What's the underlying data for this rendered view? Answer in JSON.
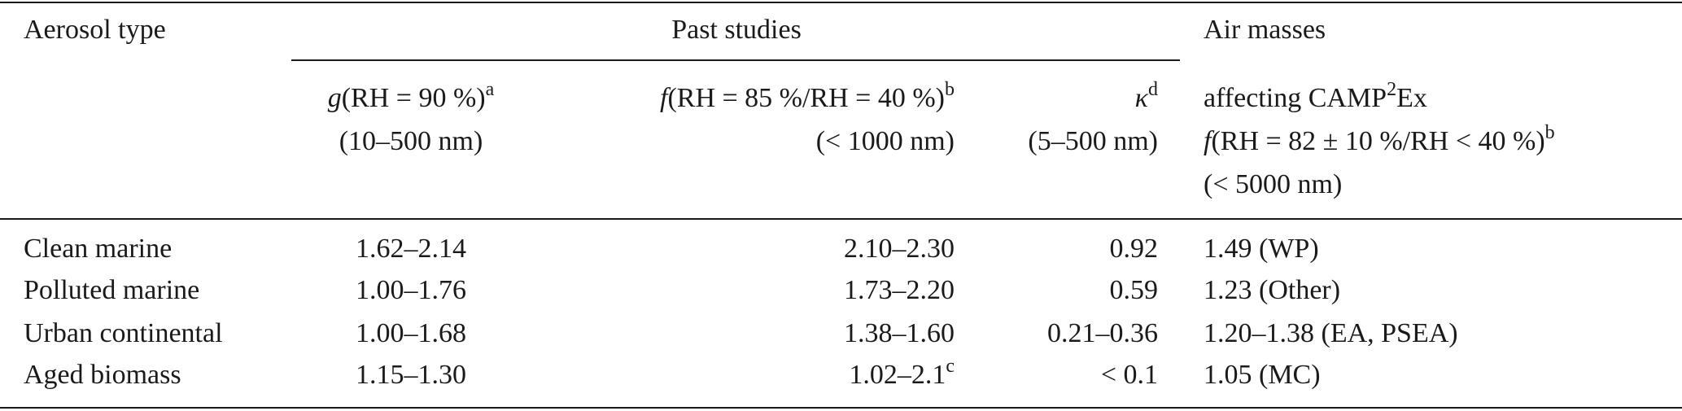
{
  "table": {
    "header": {
      "aerosol_type": "Aerosol type",
      "past_studies": "Past studies",
      "air_masses": "Air masses",
      "g_column": {
        "symbol": "g",
        "condition": "(RH = 90 %)",
        "note": "a",
        "size": "(10–500 nm)"
      },
      "f_column": {
        "symbol": "f",
        "condition": "(RH = 85 %/RH = 40 %)",
        "note": "b",
        "size": "(< 1000 nm)"
      },
      "kappa_column": {
        "symbol": "κ",
        "note": "d",
        "size": "(5–500 nm)"
      },
      "camp_column": {
        "line1_start": "affecting CAMP",
        "line1_sup": "2",
        "line1_end": "Ex",
        "symbol": "f",
        "condition": "(RH = 82 ± 10 %/RH < 40 %)",
        "note": "b",
        "size": "(< 5000 nm)"
      }
    },
    "rows": [
      [
        "Clean marine",
        "1.62–2.14",
        "2.10–2.30",
        "0.92",
        "1.49 (WP)"
      ],
      [
        "Polluted marine",
        "1.00–1.76",
        "1.73–2.20",
        "0.59",
        "1.23 (Other)"
      ],
      [
        "Urban continental",
        "1.00–1.68",
        "1.38–1.60",
        "0.21–0.36",
        "1.20–1.38 (EA, PSEA)"
      ],
      [
        "Aged biomass",
        "1.15–1.30",
        {
          "text": "1.02–2.1",
          "note": "c"
        },
        "< 0.1",
        "1.05 (MC)"
      ]
    ]
  }
}
